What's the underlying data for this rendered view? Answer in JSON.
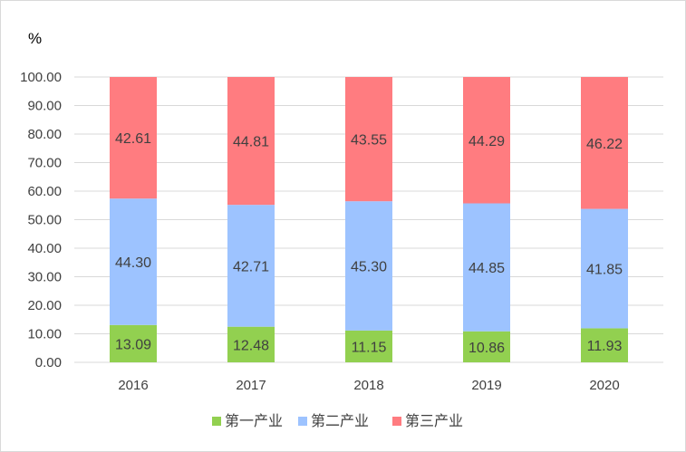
{
  "chart_data": {
    "type": "bar",
    "stacked": true,
    "ylabel": "%",
    "ylim": [
      0,
      100
    ],
    "yticks": [
      "0.00",
      "10.00",
      "20.00",
      "30.00",
      "40.00",
      "50.00",
      "60.00",
      "70.00",
      "80.00",
      "90.00",
      "100.00"
    ],
    "categories": [
      "2016",
      "2017",
      "2018",
      "2019",
      "2020"
    ],
    "series": [
      {
        "name": "第一产业",
        "color": "#92d050",
        "values": [
          13.09,
          12.48,
          11.15,
          10.86,
          11.93
        ],
        "labels": [
          "13.09",
          "12.48",
          "11.15",
          "10.86",
          "11.93"
        ]
      },
      {
        "name": "第二产业",
        "color": "#9dc3ff",
        "values": [
          44.3,
          42.71,
          45.3,
          44.85,
          41.85
        ],
        "labels": [
          "44.30",
          "42.71",
          "45.30",
          "44.85",
          "41.85"
        ]
      },
      {
        "name": "第三产业",
        "color": "#ff7c80",
        "values": [
          42.61,
          44.81,
          43.55,
          44.29,
          46.22
        ],
        "labels": [
          "42.61",
          "44.81",
          "43.55",
          "44.29",
          "46.22"
        ]
      }
    ],
    "grid": true,
    "legend": "bottom"
  }
}
